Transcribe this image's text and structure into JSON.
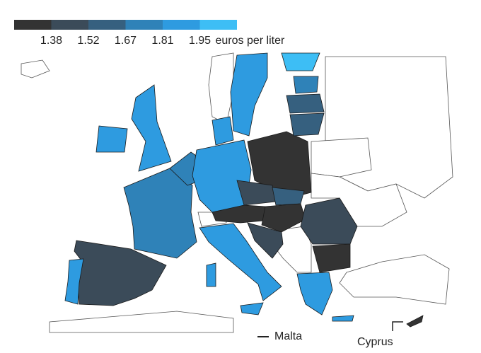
{
  "legend": {
    "colors": [
      "#333333",
      "#3b4b59",
      "#36607f",
      "#2f82b8",
      "#2e9be0",
      "#3dbef5"
    ],
    "ticks": [
      1.38,
      1.52,
      1.67,
      1.81,
      1.95
    ],
    "unit": "euros per liter"
  },
  "labels": [
    "Malta",
    "Cyprus"
  ]
}
